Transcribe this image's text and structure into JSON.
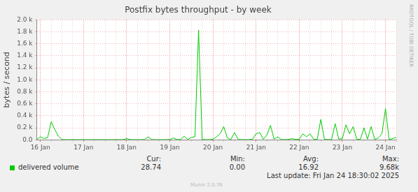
{
  "chart_data": {
    "type": "line",
    "title": "Postfix bytes throughput - by week",
    "y_label": "bytes / second",
    "categories": [
      null,
      "16 Jan",
      null,
      null,
      null,
      null,
      null,
      null,
      null,
      null,
      null,
      null,
      null,
      "17 Jan",
      null,
      null,
      null,
      null,
      null,
      null,
      null,
      null,
      null,
      null,
      null,
      "18 Jan",
      null,
      null,
      null,
      null,
      null,
      null,
      null,
      null,
      null,
      null,
      null,
      "19 Jan",
      null,
      null,
      null,
      null,
      null,
      null,
      null,
      null,
      null,
      null,
      null,
      "20 Jan",
      null,
      null,
      null,
      null,
      null,
      null,
      null,
      null,
      null,
      null,
      null,
      "21 Jan",
      null,
      null,
      null,
      null,
      null,
      null,
      null,
      null,
      null,
      null,
      null,
      "22 Jan",
      null,
      null,
      null,
      null,
      null,
      null,
      null,
      null,
      null,
      null,
      null,
      "23 Jan",
      null,
      null,
      null,
      null,
      null,
      null,
      null,
      null,
      null,
      null,
      null,
      "24 Jan",
      null,
      null,
      null
    ],
    "series": [
      {
        "name": "delivered volume",
        "color": "#00cc00",
        "values": [
          3,
          50,
          20,
          35,
          300,
          170,
          60,
          5,
          2,
          2,
          3,
          2,
          2,
          3,
          2,
          2,
          2,
          3,
          2,
          2,
          2,
          2,
          3,
          2,
          2,
          20,
          3,
          2,
          2,
          2,
          5,
          50,
          3,
          2,
          2,
          2,
          2,
          5,
          30,
          5,
          3,
          60,
          5,
          40,
          50,
          1830,
          5,
          3,
          2,
          10,
          50,
          100,
          220,
          30,
          5,
          120,
          5,
          3,
          2,
          3,
          10,
          100,
          120,
          10,
          80,
          240,
          10,
          50,
          5,
          3,
          5,
          20,
          5,
          10,
          100,
          50,
          100,
          10,
          5,
          340,
          10,
          3,
          5,
          270,
          10,
          20,
          250,
          100,
          220,
          10,
          5,
          200,
          10,
          220,
          5,
          30,
          100,
          520,
          5,
          20,
          40
        ]
      }
    ],
    "ylim": [
      0,
      2000
    ],
    "yticks": [
      {
        "value": 0,
        "label": "0.0"
      },
      {
        "value": 200,
        "label": "0.2 k"
      },
      {
        "value": 400,
        "label": "0.4 k"
      },
      {
        "value": 600,
        "label": "0.6 k"
      },
      {
        "value": 800,
        "label": "0.8 k"
      },
      {
        "value": 1000,
        "label": "1.0 k"
      },
      {
        "value": 1200,
        "label": "1.2 k"
      },
      {
        "value": 1400,
        "label": "1.4 k"
      },
      {
        "value": 1600,
        "label": "1.6 k"
      },
      {
        "value": 1800,
        "label": "1.8 k"
      },
      {
        "value": 2000,
        "label": "2.0 k"
      }
    ],
    "grid": true,
    "legend": "bottom",
    "summary": {
      "labels": [
        "Cur:",
        "Min:",
        "Avg:",
        "Max:"
      ],
      "values": [
        "28.74",
        "0.00",
        "16.92",
        "9.68k"
      ]
    },
    "annotations": [
      "Last update: Fri Jan 24 18:30:02 2025",
      "Munin 2.0.76",
      "RRDTOOL / TOBI OETIKER"
    ]
  }
}
